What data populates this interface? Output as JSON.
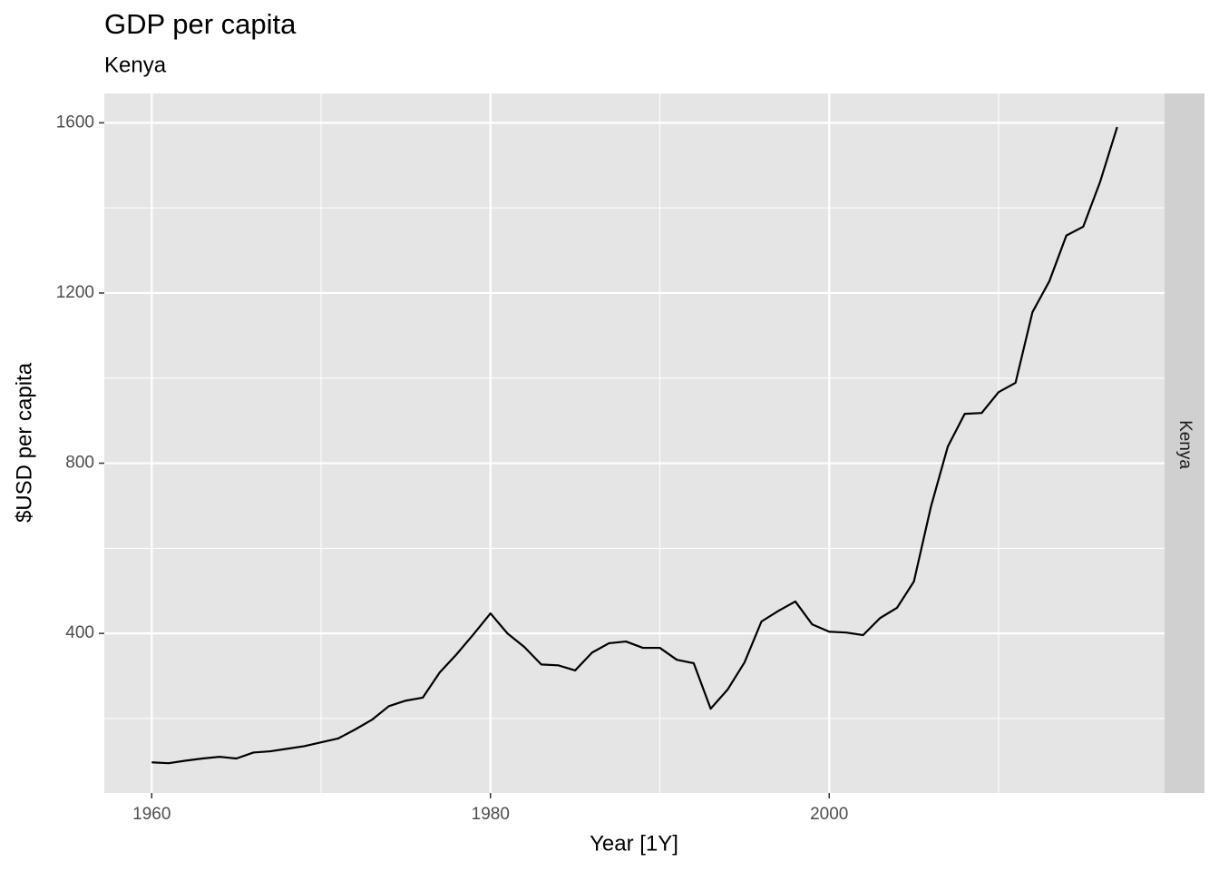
{
  "chart_data": {
    "type": "line",
    "title": "GDP per capita",
    "subtitle": "Kenya",
    "facet_label": "Kenya",
    "x_label": "Year [1Y]",
    "y_label": "$USD per capita",
    "x": [
      1960,
      1961,
      1962,
      1963,
      1964,
      1965,
      1966,
      1967,
      1968,
      1969,
      1970,
      1971,
      1972,
      1973,
      1974,
      1975,
      1976,
      1977,
      1978,
      1979,
      1980,
      1981,
      1982,
      1983,
      1984,
      1985,
      1986,
      1987,
      1988,
      1989,
      1990,
      1991,
      1992,
      1993,
      1994,
      1995,
      1996,
      1997,
      1998,
      1999,
      2000,
      2001,
      2002,
      2003,
      2004,
      2005,
      2006,
      2007,
      2008,
      2009,
      2010,
      2011,
      2012,
      2013,
      2014,
      2015,
      2016,
      2017
    ],
    "series": [
      {
        "name": "Kenya",
        "color": "#000000",
        "values": [
          97,
          95,
          101,
          106,
          110,
          106,
          120,
          123,
          129,
          135,
          144,
          153,
          174,
          197,
          229,
          242,
          249,
          308,
          351,
          398,
          447,
          400,
          368,
          327,
          325,
          313,
          355,
          377,
          381,
          366,
          366,
          338,
          330,
          223,
          268,
          332,
          428,
          453,
          475,
          421,
          404,
          402,
          396,
          436,
          460,
          522,
          697,
          839,
          916,
          918,
          967,
          989,
          1155,
          1228,
          1335,
          1356,
          1462,
          1590
        ]
      }
    ],
    "xlim": [
      1957.2,
      2019.8
    ],
    "ylim": [
      25,
      1669
    ],
    "xticks": [
      1960,
      1980,
      2000
    ],
    "yticks": [
      400,
      800,
      1200,
      1600
    ],
    "grid": true
  }
}
